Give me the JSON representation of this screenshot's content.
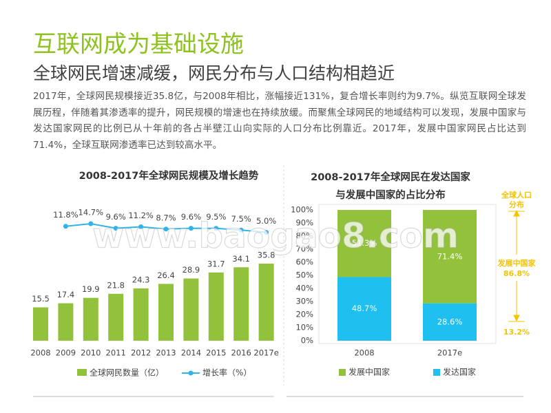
{
  "header": {
    "title": "互联网成为基础设施",
    "subtitle": "全球网民增速减缓，网民分布与人口结构相趋近",
    "body": "2017年，全球网民规模接近35.8亿，与2008年相比，涨幅接近131%，复合增长率则约为9.7%。纵览互联网全球发展历程，伴随着其渗透率的提升，网民规模的增速也在持续放缓。而聚焦全球网民的地域结构可以发现，发展中国家与发达国家网民的比例已从十年前的各占半壁江山向实际的人口分布比例靠近。2017年，发展中国家网民占比达到71.4%，全球互联网渗透率已达到较高水平。"
  },
  "watermark": "www.baogao8.com",
  "chart_data": [
    {
      "type": "bar",
      "title": "2008-2017年全球网民规模及增长趋势",
      "categories": [
        "2008",
        "2009",
        "2010",
        "2011",
        "2012",
        "2013",
        "2014",
        "2015",
        "2016",
        "2017e"
      ],
      "series": [
        {
          "name": "全球网民数量（亿）",
          "color": "#92c13b",
          "values": [
            15.5,
            17.4,
            19.9,
            21.8,
            24.3,
            26.4,
            28.9,
            31.7,
            34.1,
            35.8
          ]
        },
        {
          "name": "增长率（%）",
          "color": "#2fb3e8",
          "type": "line",
          "axis": "y2",
          "values": [
            null,
            11.8,
            14.7,
            9.6,
            11.2,
            8.7,
            9.6,
            9.5,
            7.5,
            5.0
          ],
          "value_labels": [
            null,
            "11.8%",
            "14.7%",
            "9.6%",
            "11.2%",
            "8.7%",
            "9.6%",
            "9.5%",
            "7.5%",
            "5.0%"
          ]
        }
      ]
    },
    {
      "type": "stacked_bar",
      "title": [
        "2008-2017年全球网民在发达国家",
        "与发展中国家的占比分布"
      ],
      "categories": [
        "2008",
        "2017e"
      ],
      "series": [
        {
          "name": "发展中国家",
          "color": "#92c13b",
          "values": [
            51.3,
            71.4
          ],
          "value_labels": [
            "51.3%",
            "71.4%"
          ]
        },
        {
          "name": "发达国家",
          "color": "#1fbfef",
          "values": [
            48.7,
            28.6
          ],
          "value_labels": [
            "48.7%",
            "28.6%"
          ]
        }
      ],
      "ylim": [
        0,
        100
      ],
      "yticks": [
        {
          "value": 0,
          "label": "0%"
        },
        {
          "value": 10,
          "label": "10%"
        },
        {
          "value": 20,
          "label": "20%"
        },
        {
          "value": 30,
          "label": "30%"
        },
        {
          "value": 40,
          "label": "40%"
        },
        {
          "value": 50,
          "label": "50%"
        },
        {
          "value": 60,
          "label": "60%"
        },
        {
          "value": 70,
          "label": "70%"
        },
        {
          "value": 80,
          "label": "80%"
        },
        {
          "value": 90,
          "label": "90%"
        },
        {
          "value": 100,
          "label": "100%"
        }
      ]
    }
  ],
  "annotation": {
    "title": [
      "全球人口",
      "分布"
    ],
    "items": [
      {
        "name": "发展中国家",
        "value": 86.8,
        "label": "86.8%"
      },
      {
        "value": 13.2,
        "label": "13.2%"
      }
    ]
  }
}
